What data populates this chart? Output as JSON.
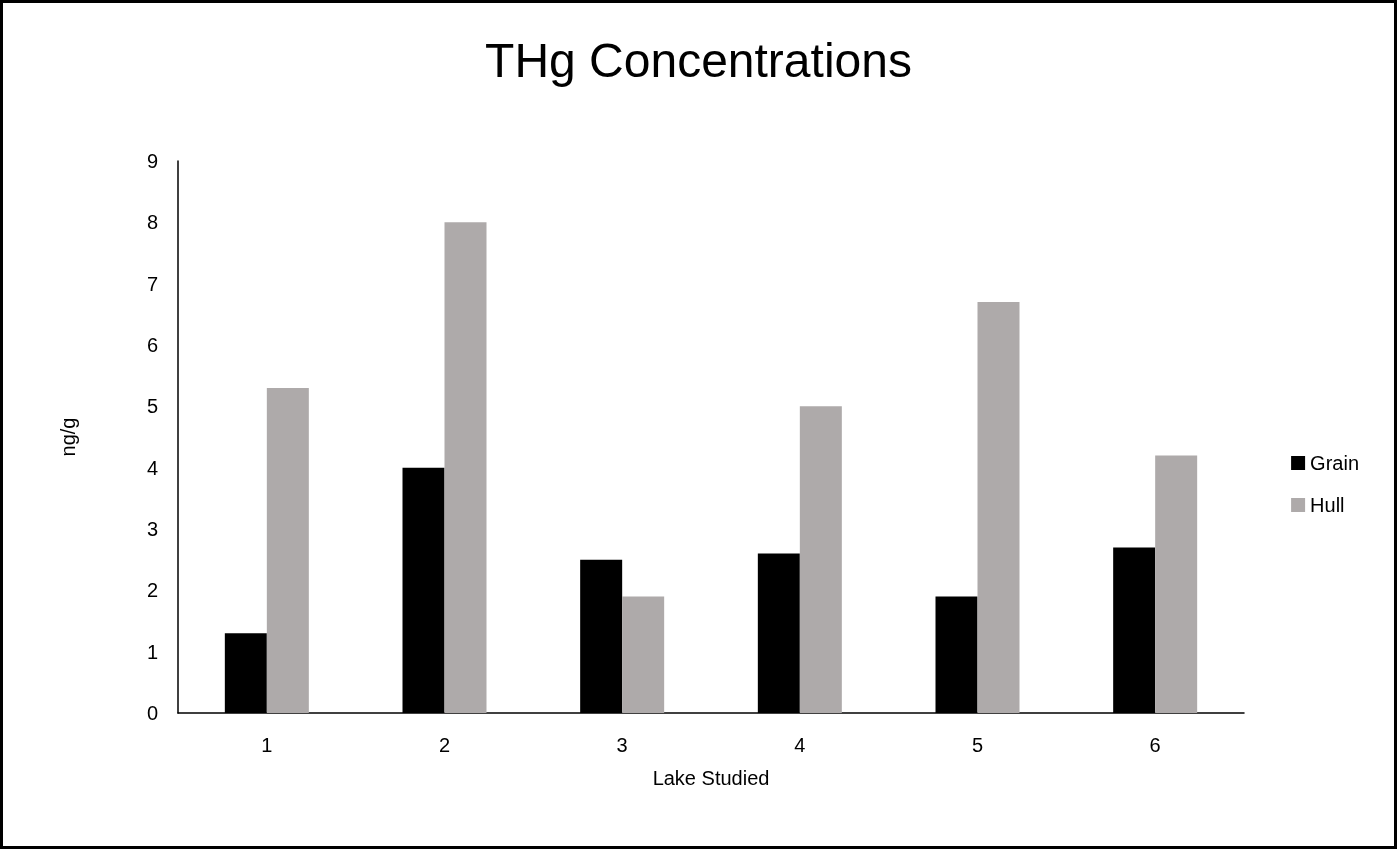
{
  "chart_data": {
    "type": "bar",
    "title": "THg Concentrations",
    "xlabel": "Lake Studied",
    "ylabel": "ng/g",
    "categories": [
      "1",
      "2",
      "3",
      "4",
      "5",
      "6"
    ],
    "series": [
      {
        "name": "Grain",
        "color": "#000000",
        "values": [
          1.3,
          4.0,
          2.5,
          2.6,
          1.9,
          2.7
        ]
      },
      {
        "name": "Hull",
        "color": "#aeaaaa",
        "values": [
          5.3,
          8.0,
          1.9,
          5.0,
          6.7,
          4.2
        ]
      }
    ],
    "ylim": [
      0,
      9
    ],
    "yticks": [
      0,
      1,
      2,
      3,
      4,
      5,
      6,
      7,
      8,
      9
    ],
    "legend": "right"
  }
}
